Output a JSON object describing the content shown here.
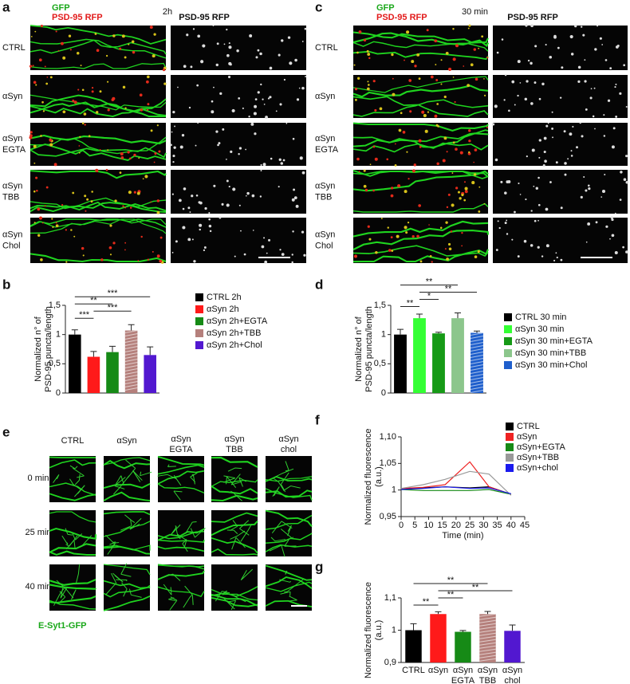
{
  "panel_a": {
    "letter": "a",
    "gfp": "GFP",
    "rfp": "PSD-95 RFP",
    "time": "2h",
    "right_title": "PSD-95 RFP",
    "rows": [
      [
        "CTRL"
      ],
      [
        "αSyn"
      ],
      [
        "αSyn",
        "EGTA"
      ],
      [
        "αSyn",
        "TBB"
      ],
      [
        "αSyn",
        "Chol"
      ]
    ]
  },
  "panel_c": {
    "letter": "c",
    "gfp": "GFP",
    "rfp": "PSD-95 RFP",
    "time": "30 min",
    "right_title": "PSD-95 RFP",
    "rows": [
      [
        "CTRL"
      ],
      [
        "αSyn"
      ],
      [
        "αSyn",
        "EGTA"
      ],
      [
        "αSyn",
        "TBB"
      ],
      [
        "αSyn",
        "Chol"
      ]
    ]
  },
  "panel_e": {
    "letter": "e",
    "columns": [
      [
        "CTRL"
      ],
      [
        "αSyn"
      ],
      [
        "αSyn",
        "EGTA"
      ],
      [
        "αSyn",
        "TBB"
      ],
      [
        "αSyn",
        "chol"
      ]
    ],
    "rows": [
      "0 min",
      "25 min",
      "40 min"
    ],
    "caption": "E-Syt1-GFP"
  },
  "chart_data": [
    {
      "type": "bar",
      "letter": "b",
      "ylabel": [
        "Normalized n° of",
        "PSD-95 puncta/length"
      ],
      "categories": [
        "CTRL 2h",
        "αSyn 2h",
        "αSyn 2h+EGTA",
        "αSyn 2h+TBB",
        "αSyn 2h+Chol"
      ],
      "values": [
        1,
        0.62,
        0.7,
        1.07,
        0.65
      ],
      "errors": [
        0.08,
        0.09,
        0.1,
        0.1,
        0.14
      ],
      "colors": [
        "#000000",
        "#ff1a1a",
        "#168a16",
        "#b5807c",
        "#5218d0"
      ],
      "hatch": [
        false,
        false,
        false,
        true,
        false
      ],
      "ylim": [
        0,
        1.5
      ],
      "yticks": [
        0,
        {
          "value": 0.5,
          "label": "0,5"
        },
        1,
        {
          "value": 1.5,
          "label": "1,5"
        }
      ],
      "legend": "right",
      "significance": [
        {
          "label": "***",
          "pair": [
            0,
            1
          ]
        },
        {
          "label": "***",
          "pair": [
            1,
            3
          ]
        },
        {
          "label": "**",
          "pair": [
            0,
            2
          ]
        },
        {
          "label": "***",
          "pair": [
            0,
            4
          ]
        }
      ]
    },
    {
      "type": "bar",
      "letter": "d",
      "ylabel": [
        "Normalized n° of",
        "PSD-95 puncta/length"
      ],
      "categories": [
        "CTRL 30 min",
        "αSyn 30 min",
        "αSyn 30 min+EGTA",
        "αSyn 30 min+TBB",
        "αSyn 30 min+Chol"
      ],
      "values": [
        1,
        1.28,
        1.02,
        1.28,
        1.03
      ],
      "errors": [
        0.09,
        0.07,
        0.02,
        0.09,
        0.03
      ],
      "colors": [
        "#000000",
        "#33ff33",
        "#169a16",
        "#8cc68c",
        "#1f5fcc"
      ],
      "hatch": [
        false,
        false,
        false,
        false,
        true
      ],
      "ylim": [
        0,
        1.5
      ],
      "yticks": [
        0,
        {
          "value": 0.5,
          "label": "0,5"
        },
        1,
        {
          "value": 1.5,
          "label": "1,5"
        }
      ],
      "legend": "right",
      "significance": [
        {
          "label": "**",
          "pair": [
            0,
            1
          ]
        },
        {
          "label": "*",
          "pair": [
            1,
            2
          ]
        },
        {
          "label": "**",
          "pair": [
            1,
            4
          ]
        },
        {
          "label": "**",
          "pair": [
            0,
            3
          ]
        }
      ]
    },
    {
      "type": "line",
      "letter": "f",
      "ylabel": [
        "Normalized fluorescence",
        "(a.u.)"
      ],
      "xlabel": "Time (min)",
      "x": [
        0,
        8,
        16,
        25,
        32,
        40
      ],
      "series": [
        {
          "name": "CTRL",
          "color": "#000000",
          "values": [
            1.002,
            1.004,
            1.006,
            1.004,
            1.006,
            0.992
          ]
        },
        {
          "name": "αSyn",
          "color": "#ee2222",
          "values": [
            1.003,
            1.005,
            1.01,
            1.053,
            1.006,
            0.992
          ]
        },
        {
          "name": "αSyn+EGTA",
          "color": "#168a16",
          "values": [
            1.001,
            0.999,
            0.999,
            0.999,
            1.001,
            0.992
          ]
        },
        {
          "name": "αSyn+TBB",
          "color": "#999999",
          "values": [
            1.003,
            1.01,
            1.02,
            1.035,
            1.03,
            0.99
          ]
        },
        {
          "name": "αSyn+chol",
          "color": "#1a1aee",
          "values": [
            1.001,
            1.003,
            1.006,
            1.003,
            1.004,
            0.993
          ]
        }
      ],
      "xlim": [
        0,
        45
      ],
      "xticks": [
        0,
        5,
        10,
        15,
        20,
        25,
        30,
        35,
        40,
        45
      ],
      "ylim": [
        0.95,
        1.1
      ],
      "yticks": [
        {
          "value": 0.95,
          "label": "0,95"
        },
        1,
        {
          "value": 1.05,
          "label": "1,05"
        },
        {
          "value": 1.1,
          "label": "1,10"
        }
      ],
      "legend": "upper right"
    },
    {
      "type": "bar",
      "letter": "g",
      "ylabel": [
        "Normalized fluorescence",
        "(a.u.)"
      ],
      "categories": [
        [
          "CTRL"
        ],
        [
          "αSyn"
        ],
        [
          "αSyn",
          "EGTA"
        ],
        [
          "αSyn",
          "TBB"
        ],
        [
          "αSyn",
          "chol"
        ]
      ],
      "values": [
        1.0,
        1.05,
        0.995,
        1.05,
        0.998
      ],
      "errors": [
        0.02,
        0.007,
        0.004,
        0.008,
        0.018
      ],
      "colors": [
        "#000000",
        "#ff1a1a",
        "#168a16",
        "#b5807c",
        "#5218d0"
      ],
      "hatch": [
        false,
        false,
        false,
        true,
        false
      ],
      "ylim": [
        0.9,
        1.1
      ],
      "yticks": [
        {
          "value": 0.9,
          "label": "0,9"
        },
        1,
        {
          "value": 1.1,
          "label": "1,1"
        }
      ],
      "significance": [
        {
          "label": "**",
          "pair": [
            0,
            1
          ]
        },
        {
          "label": "**",
          "pair": [
            1,
            2
          ]
        },
        {
          "label": "**",
          "pair": [
            1,
            4
          ]
        },
        {
          "label": "**",
          "pair": [
            0,
            3
          ]
        }
      ]
    }
  ]
}
